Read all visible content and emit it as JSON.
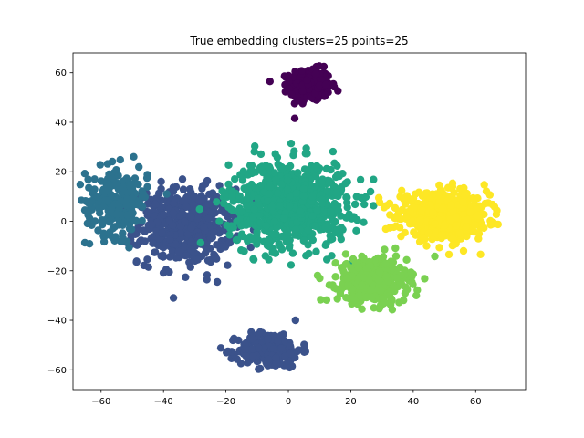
{
  "chart_data": {
    "type": "scatter",
    "title": "True embedding clusters=25 points=25",
    "xlabel": "",
    "ylabel": "",
    "xlim": [
      -69,
      76
    ],
    "ylim": [
      -68,
      68
    ],
    "x_ticks": [
      -60,
      -40,
      -20,
      0,
      20,
      40,
      60
    ],
    "y_ticks": [
      -60,
      -40,
      -20,
      0,
      20,
      40,
      60
    ],
    "grid": false,
    "legend": "none",
    "series": [
      {
        "color": "#440154",
        "clusters": [
          {
            "cx": 7,
            "cy": 55,
            "sx": 3.2,
            "sy": 3.2,
            "n": 340
          }
        ]
      },
      {
        "color": "#3b528b",
        "clusters": [
          {
            "cx": -33,
            "cy": -2,
            "sx": 7.5,
            "sy": 7.5,
            "n": 520
          },
          {
            "cx": -6,
            "cy": -52,
            "sx": 5,
            "sy": 3.5,
            "n": 260
          }
        ]
      },
      {
        "color": "#2c728e",
        "clusters": [
          {
            "cx": -55,
            "cy": 8,
            "sx": 5,
            "sy": 7,
            "n": 220
          }
        ]
      },
      {
        "color": "#21a685",
        "clusters": [
          {
            "cx": 0,
            "cy": 7,
            "sx": 9.5,
            "sy": 8.5,
            "n": 800
          }
        ]
      },
      {
        "color": "#7ad151",
        "clusters": [
          {
            "cx": 27,
            "cy": -24,
            "sx": 5.5,
            "sy": 4.5,
            "n": 420
          }
        ]
      },
      {
        "color": "#fde725",
        "clusters": [
          {
            "cx": 50,
            "cy": 2,
            "sx": 7,
            "sy": 4.5,
            "n": 650
          }
        ]
      }
    ]
  }
}
